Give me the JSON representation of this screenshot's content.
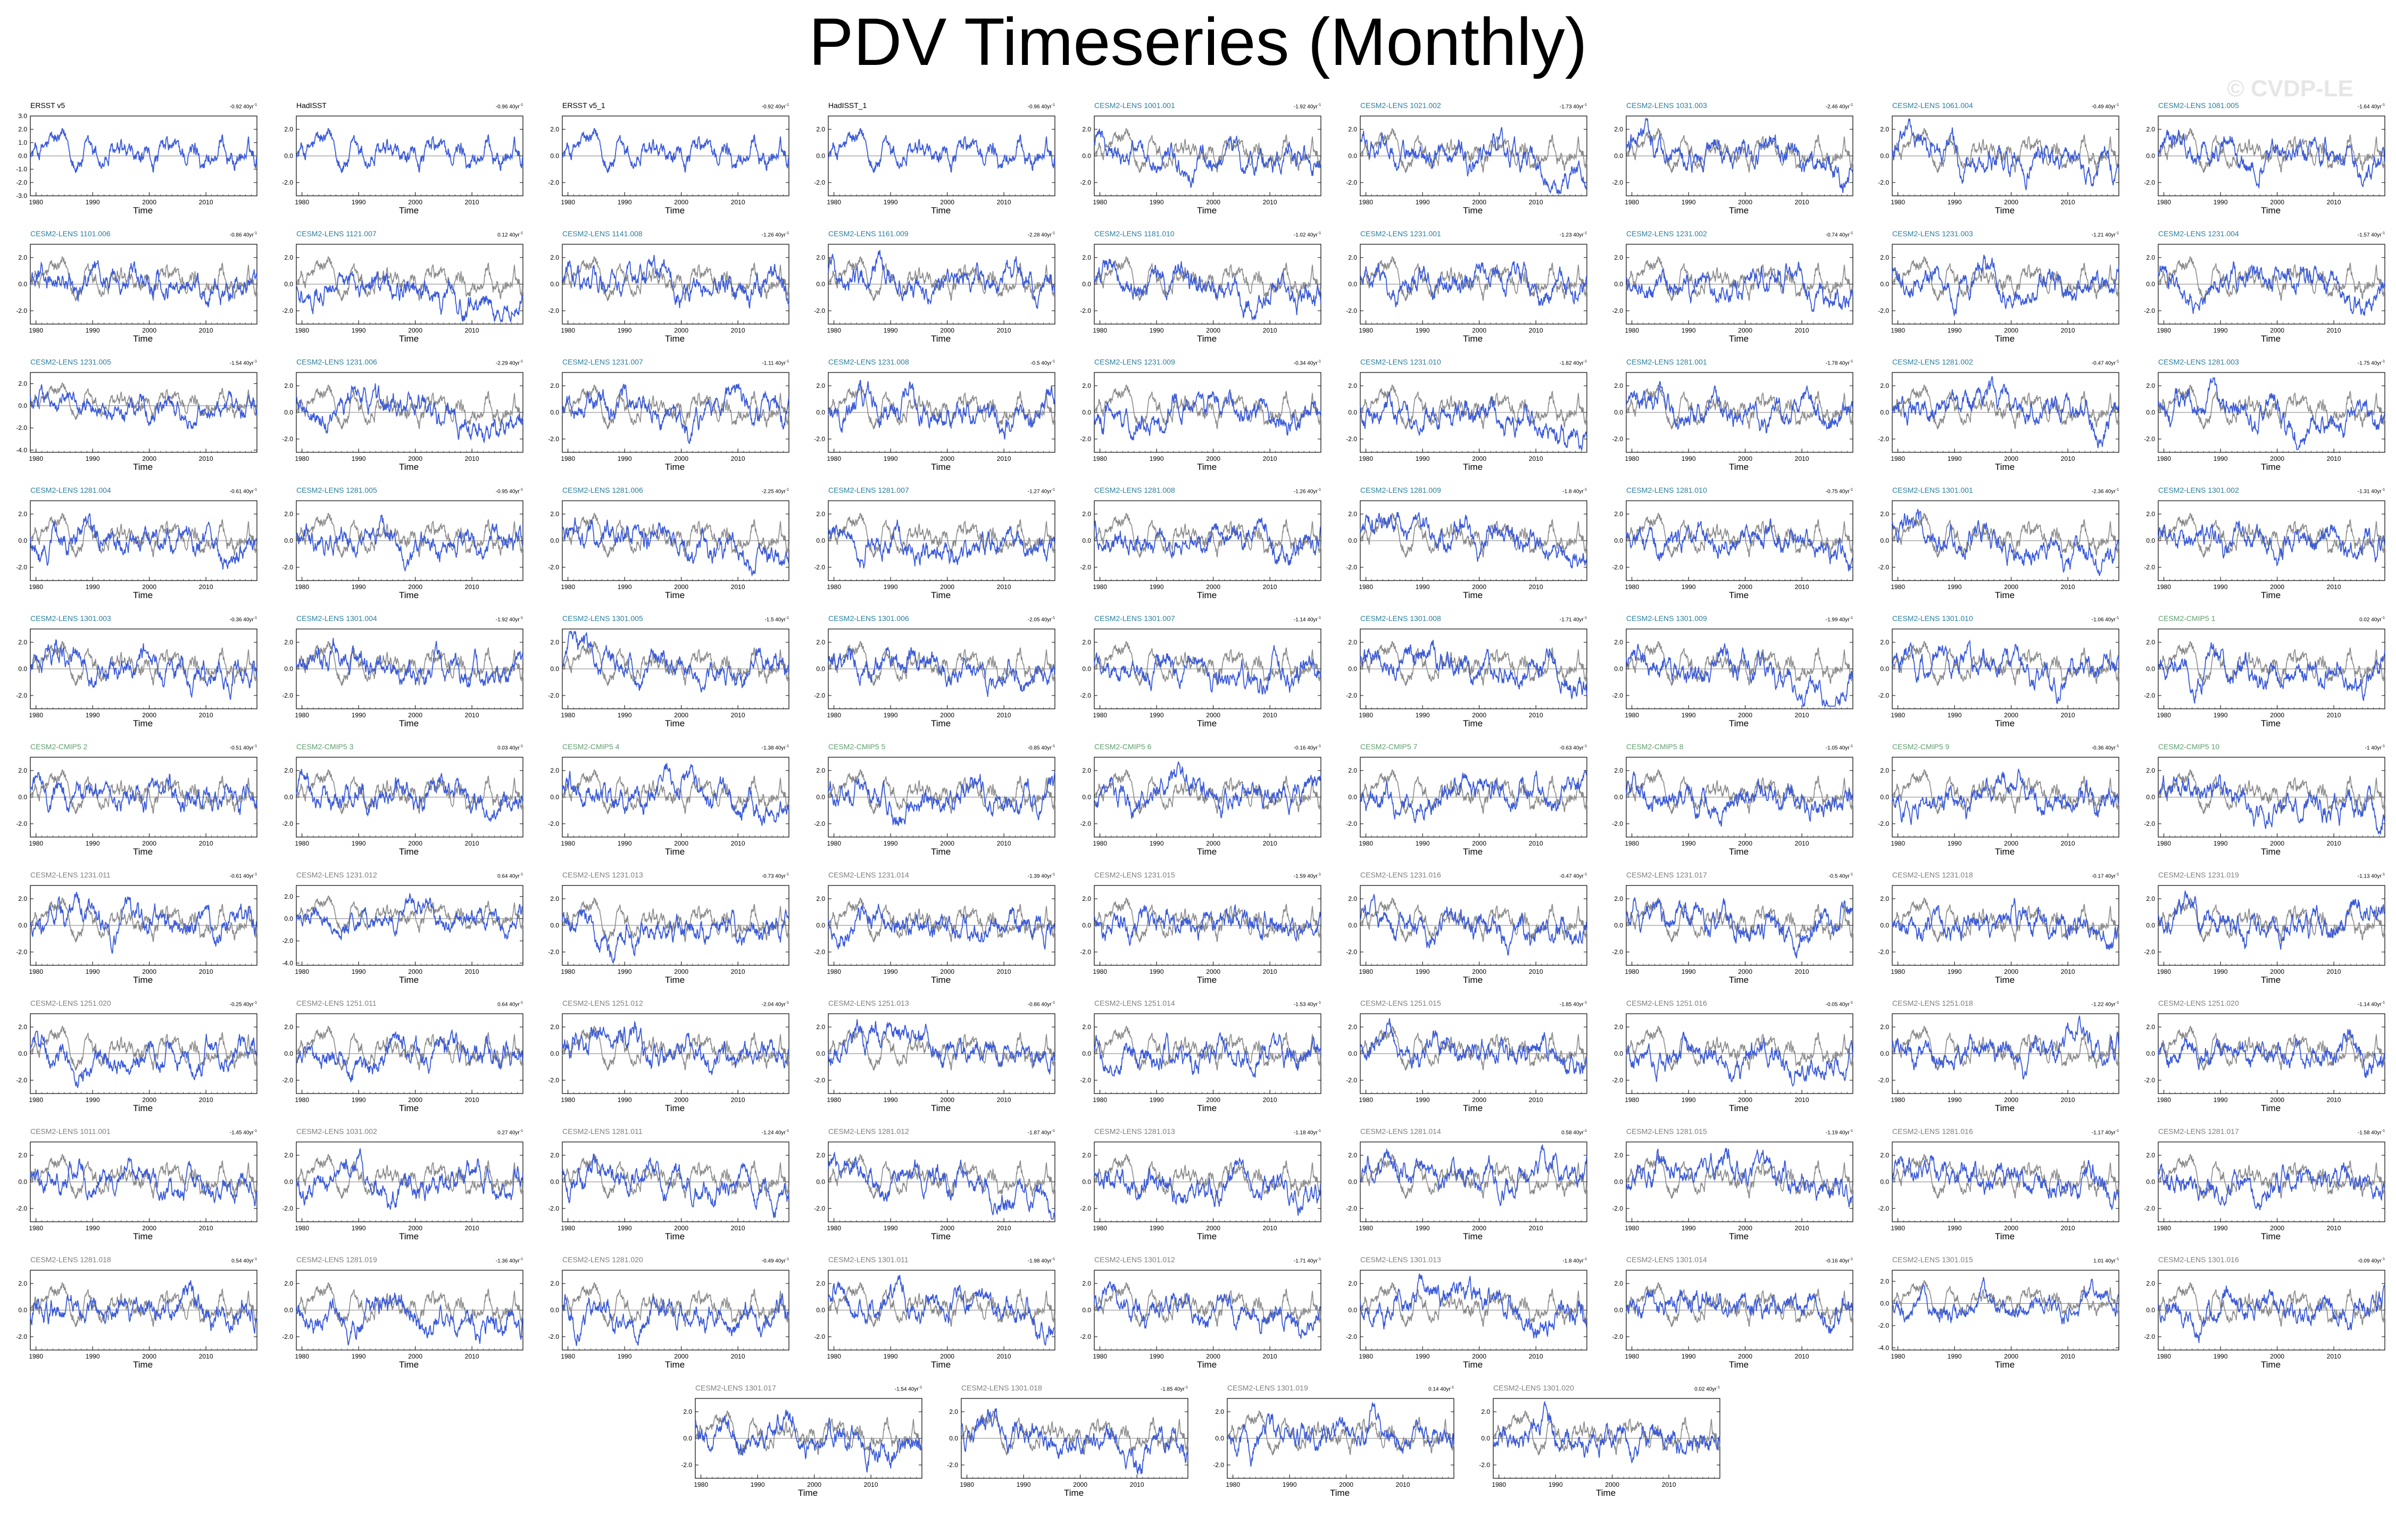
{
  "title": "PDV Timeseries (Monthly)",
  "watermark": "© CVDP-LE",
  "colors": {
    "model_line": "#3b5bd9",
    "obs_line": "#8a8a8a",
    "obs_title": "#000000",
    "lens_title": "#2a7f9e",
    "cmip_title": "#5f9e6e",
    "lens_smbb_title": "#7f7f7f"
  },
  "chart_data": {
    "type": "line",
    "xlabel": "Time",
    "xlim": [
      1979,
      2019
    ],
    "x_ticks": [
      1980,
      1990,
      2000,
      2010
    ],
    "ylim": [
      -3.0,
      3.0
    ],
    "y_ticks_full": [
      "3.0",
      "2.0",
      "1.0",
      "0.0",
      "-1.0",
      "-2.0",
      "-3.0"
    ],
    "y_ticks": [
      "2.0",
      "0.0",
      "-2.0"
    ],
    "y_ticks_wide": [
      "2.0",
      "0.0",
      "-2.0",
      "-4.0"
    ],
    "units_suffix": "40yr",
    "panels": [
      {
        "name": "ERSST v5",
        "trend": "-0.92",
        "group": "obs"
      },
      {
        "name": "HadISST",
        "trend": "-0.96",
        "group": "obs"
      },
      {
        "name": "ERSST v5_1",
        "trend": "-0.92",
        "group": "obs"
      },
      {
        "name": "HadISST_1",
        "trend": "-0.96",
        "group": "obs"
      },
      {
        "name": "CESM2-LENS 1001.001",
        "trend": "-1.92",
        "group": "lens"
      },
      {
        "name": "CESM2-LENS 1021.002",
        "trend": "-1.73",
        "group": "lens"
      },
      {
        "name": "CESM2-LENS 1031.003",
        "trend": "-2.46",
        "group": "lens"
      },
      {
        "name": "CESM2-LENS 1061.004",
        "trend": "-0.49",
        "group": "lens"
      },
      {
        "name": "CESM2-LENS 1081.005",
        "trend": "-1.64",
        "group": "lens"
      },
      {
        "name": "CESM2-LENS 1101.006",
        "trend": "-0.86",
        "group": "lens"
      },
      {
        "name": "CESM2-LENS 1121.007",
        "trend": "0.12",
        "group": "lens"
      },
      {
        "name": "CESM2-LENS 1141.008",
        "trend": "-1.26",
        "group": "lens"
      },
      {
        "name": "CESM2-LENS 1161.009",
        "trend": "-2.28",
        "group": "lens"
      },
      {
        "name": "CESM2-LENS 1181.010",
        "trend": "-1.02",
        "group": "lens"
      },
      {
        "name": "CESM2-LENS 1231.001",
        "trend": "-1.23",
        "group": "lens"
      },
      {
        "name": "CESM2-LENS 1231.002",
        "trend": "-0.74",
        "group": "lens"
      },
      {
        "name": "CESM2-LENS 1231.003",
        "trend": "-1.21",
        "group": "lens"
      },
      {
        "name": "CESM2-LENS 1231.004",
        "trend": "-1.57",
        "group": "lens"
      },
      {
        "name": "CESM2-LENS 1231.005",
        "trend": "-1.54",
        "group": "lens",
        "wide": true
      },
      {
        "name": "CESM2-LENS 1231.006",
        "trend": "-2.29",
        "group": "lens"
      },
      {
        "name": "CESM2-LENS 1231.007",
        "trend": "-1.11",
        "group": "lens"
      },
      {
        "name": "CESM2-LENS 1231.008",
        "trend": "-0.5",
        "group": "lens"
      },
      {
        "name": "CESM2-LENS 1231.009",
        "trend": "-0.34",
        "group": "lens"
      },
      {
        "name": "CESM2-LENS 1231.010",
        "trend": "-1.82",
        "group": "lens"
      },
      {
        "name": "CESM2-LENS 1281.001",
        "trend": "-1.78",
        "group": "lens"
      },
      {
        "name": "CESM2-LENS 1281.002",
        "trend": "-0.47",
        "group": "lens"
      },
      {
        "name": "CESM2-LENS 1281.003",
        "trend": "-1.75",
        "group": "lens"
      },
      {
        "name": "CESM2-LENS 1281.004",
        "trend": "-0.61",
        "group": "lens"
      },
      {
        "name": "CESM2-LENS 1281.005",
        "trend": "-0.95",
        "group": "lens"
      },
      {
        "name": "CESM2-LENS 1281.006",
        "trend": "-2.25",
        "group": "lens"
      },
      {
        "name": "CESM2-LENS 1281.007",
        "trend": "-1.27",
        "group": "lens"
      },
      {
        "name": "CESM2-LENS 1281.008",
        "trend": "-1.26",
        "group": "lens"
      },
      {
        "name": "CESM2-LENS 1281.009",
        "trend": "-1.8",
        "group": "lens"
      },
      {
        "name": "CESM2-LENS 1281.010",
        "trend": "-0.75",
        "group": "lens"
      },
      {
        "name": "CESM2-LENS 1301.001",
        "trend": "-2.36",
        "group": "lens"
      },
      {
        "name": "CESM2-LENS 1301.002",
        "trend": "-1.31",
        "group": "lens"
      },
      {
        "name": "CESM2-LENS 1301.003",
        "trend": "-0.36",
        "group": "lens"
      },
      {
        "name": "CESM2-LENS 1301.004",
        "trend": "-1.92",
        "group": "lens"
      },
      {
        "name": "CESM2-LENS 1301.005",
        "trend": "-1.5",
        "group": "lens"
      },
      {
        "name": "CESM2-LENS 1301.006",
        "trend": "-2.05",
        "group": "lens"
      },
      {
        "name": "CESM2-LENS 1301.007",
        "trend": "-1.14",
        "group": "lens"
      },
      {
        "name": "CESM2-LENS 1301.008",
        "trend": "-1.71",
        "group": "lens"
      },
      {
        "name": "CESM2-LENS 1301.009",
        "trend": "-1.99",
        "group": "lens"
      },
      {
        "name": "CESM2-LENS 1301.010",
        "trend": "-1.06",
        "group": "lens"
      },
      {
        "name": "CESM2-CMIP5 1",
        "trend": "0.02",
        "group": "cmip"
      },
      {
        "name": "CESM2-CMIP5 2",
        "trend": "-0.51",
        "group": "cmip"
      },
      {
        "name": "CESM2-CMIP5 3",
        "trend": "0.03",
        "group": "cmip"
      },
      {
        "name": "CESM2-CMIP5 4",
        "trend": "-1.38",
        "group": "cmip"
      },
      {
        "name": "CESM2-CMIP5 5",
        "trend": "-0.85",
        "group": "cmip"
      },
      {
        "name": "CESM2-CMIP5 6",
        "trend": "-0.16",
        "group": "cmip"
      },
      {
        "name": "CESM2-CMIP5 7",
        "trend": "-0.63",
        "group": "cmip"
      },
      {
        "name": "CESM2-CMIP5 8",
        "trend": "-1.05",
        "group": "cmip"
      },
      {
        "name": "CESM2-CMIP5 9",
        "trend": "-0.36",
        "group": "cmip"
      },
      {
        "name": "CESM2-CMIP5 10",
        "trend": "-1",
        "group": "cmip"
      },
      {
        "name": "CESM2-LENS 1231.011",
        "trend": "-0.61",
        "group": "smbb"
      },
      {
        "name": "CESM2-LENS 1231.012",
        "trend": "0.64",
        "group": "smbb",
        "wide": true
      },
      {
        "name": "CESM2-LENS 1231.013",
        "trend": "-0.73",
        "group": "smbb"
      },
      {
        "name": "CESM2-LENS 1231.014",
        "trend": "-1.39",
        "group": "smbb"
      },
      {
        "name": "CESM2-LENS 1231.015",
        "trend": "-1.59",
        "group": "smbb"
      },
      {
        "name": "CESM2-LENS 1231.016",
        "trend": "-0.47",
        "group": "smbb"
      },
      {
        "name": "CESM2-LENS 1231.017",
        "trend": "-0.5",
        "group": "smbb"
      },
      {
        "name": "CESM2-LENS 1231.018",
        "trend": "-0.17",
        "group": "smbb"
      },
      {
        "name": "CESM2-LENS 1231.019",
        "trend": "-1.13",
        "group": "smbb"
      },
      {
        "name": "CESM2-LENS 1251.020",
        "trend": "-0.25",
        "group": "smbb"
      },
      {
        "name": "CESM2-LENS 1251.011",
        "trend": "0.64",
        "group": "smbb"
      },
      {
        "name": "CESM2-LENS 1251.012",
        "trend": "-2.04",
        "group": "smbb"
      },
      {
        "name": "CESM2-LENS 1251.013",
        "trend": "-0.86",
        "group": "smbb"
      },
      {
        "name": "CESM2-LENS 1251.014",
        "trend": "-1.53",
        "group": "smbb"
      },
      {
        "name": "CESM2-LENS 1251.015",
        "trend": "-1.85",
        "group": "smbb"
      },
      {
        "name": "CESM2-LENS 1251.016",
        "trend": "-0.05",
        "group": "smbb"
      },
      {
        "name": "CESM2-LENS 1251.018",
        "trend": "-1.22",
        "group": "smbb"
      },
      {
        "name": "CESM2-LENS 1251.020",
        "trend": "-1.14",
        "group": "smbb"
      },
      {
        "name": "CESM2-LENS 1011.001",
        "trend": "-1.45",
        "group": "smbb"
      },
      {
        "name": "CESM2-LENS 1031.002",
        "trend": "0.27",
        "group": "smbb"
      },
      {
        "name": "CESM2-LENS 1281.011",
        "trend": "-1.24",
        "group": "smbb"
      },
      {
        "name": "CESM2-LENS 1281.012",
        "trend": "-1.87",
        "group": "smbb"
      },
      {
        "name": "CESM2-LENS 1281.013",
        "trend": "-1.18",
        "group": "smbb"
      },
      {
        "name": "CESM2-LENS 1281.014",
        "trend": "0.58",
        "group": "smbb"
      },
      {
        "name": "CESM2-LENS 1281.015",
        "trend": "-1.19",
        "group": "smbb"
      },
      {
        "name": "CESM2-LENS 1281.016",
        "trend": "-1.17",
        "group": "smbb"
      },
      {
        "name": "CESM2-LENS 1281.017",
        "trend": "-1.58",
        "group": "smbb"
      },
      {
        "name": "CESM2-LENS 1281.018",
        "trend": "0.54",
        "group": "smbb"
      },
      {
        "name": "CESM2-LENS 1281.019",
        "trend": "-1.36",
        "group": "smbb"
      },
      {
        "name": "CESM2-LENS 1281.020",
        "trend": "-0.49",
        "group": "smbb"
      },
      {
        "name": "CESM2-LENS 1301.011",
        "trend": "-1.98",
        "group": "smbb"
      },
      {
        "name": "CESM2-LENS 1301.012",
        "trend": "-1.71",
        "group": "smbb"
      },
      {
        "name": "CESM2-LENS 1301.013",
        "trend": "-1.8",
        "group": "smbb"
      },
      {
        "name": "CESM2-LENS 1301.014",
        "trend": "-0.16",
        "group": "smbb"
      },
      {
        "name": "CESM2-LENS 1301.015",
        "trend": "1.01",
        "group": "smbb",
        "wide": true
      },
      {
        "name": "CESM2-LENS 1301.016",
        "trend": "-0.09",
        "group": "smbb"
      },
      {
        "name": "CESM2-LENS 1301.017",
        "trend": "-1.54",
        "group": "smbb"
      },
      {
        "name": "CESM2-LENS 1301.018",
        "trend": "-1.85",
        "group": "smbb"
      },
      {
        "name": "CESM2-LENS 1301.019",
        "trend": "0.14",
        "group": "smbb"
      },
      {
        "name": "CESM2-LENS 1301.020",
        "trend": "0.02",
        "group": "smbb"
      }
    ]
  }
}
